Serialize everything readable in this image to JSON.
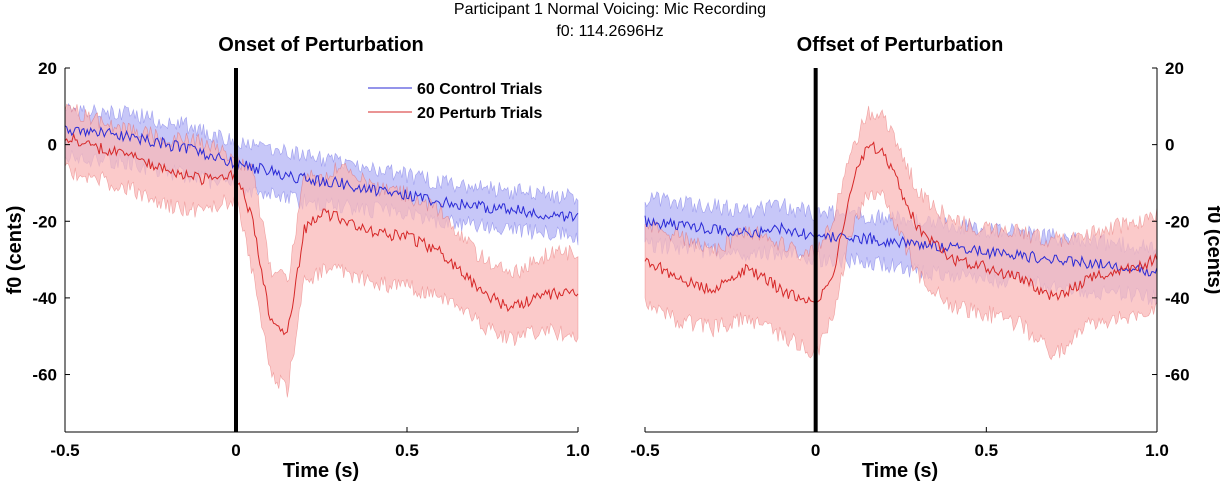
{
  "figure": {
    "suptitle_line1": "Participant 1 Normal Voicing: Mic Recording",
    "suptitle_line2": "f0: 114.2696Hz"
  },
  "colors": {
    "control": "#2a2ad6",
    "control_band": "#b4b4f5",
    "perturb": "#d62828",
    "perturb_band": "#f9b8b8",
    "onset_line": "#000000"
  },
  "legend": {
    "control": "60 Control Trials",
    "perturb": "20 Perturb Trials",
    "placement": "top-right of left panel"
  },
  "chart_data": [
    {
      "type": "line",
      "title": "Onset of Perturbation",
      "xlabel": "Time (s)",
      "ylabel": "f0 (cents)",
      "xlim": [
        -0.5,
        1.0
      ],
      "ylim": [
        -75,
        20
      ],
      "xticks": [
        "-0.5",
        "0",
        "0.5",
        "1.0"
      ],
      "xtick_values": [
        -0.5,
        0,
        0.5,
        1.0
      ],
      "yticks": [
        "20",
        "0",
        "-20",
        "-40",
        "-60"
      ],
      "ytick_values": [
        20,
        0,
        -20,
        -40,
        -60
      ],
      "vline_x": 0,
      "series": [
        {
          "name": "60 Control Trials",
          "key": "control",
          "x": [
            -0.5,
            -0.4,
            -0.3,
            -0.2,
            -0.1,
            0.0,
            0.1,
            0.2,
            0.3,
            0.4,
            0.5,
            0.6,
            0.7,
            0.8,
            0.9,
            1.0
          ],
          "mean": [
            4,
            3,
            2,
            0,
            -2,
            -5,
            -7,
            -9,
            -10,
            -12,
            -13,
            -15,
            -16,
            -17,
            -18,
            -19
          ],
          "lower": [
            -3,
            -4,
            -5,
            -7,
            -9,
            -11,
            -13,
            -15,
            -16,
            -17,
            -18,
            -20,
            -21,
            -22,
            -23,
            -24
          ],
          "upper": [
            10,
            9,
            8,
            6,
            4,
            0,
            -1,
            -3,
            -4,
            -6,
            -8,
            -10,
            -11,
            -12,
            -13,
            -14
          ]
        },
        {
          "name": "20 Perturb Trials",
          "key": "perturb",
          "x": [
            -0.5,
            -0.4,
            -0.3,
            -0.2,
            -0.1,
            0.0,
            0.05,
            0.1,
            0.15,
            0.2,
            0.25,
            0.3,
            0.4,
            0.5,
            0.6,
            0.7,
            0.8,
            0.9,
            1.0
          ],
          "mean": [
            2,
            -1,
            -3,
            -7,
            -9,
            -8,
            -20,
            -46,
            -50,
            -22,
            -18,
            -19,
            -23,
            -24,
            -28,
            -37,
            -43,
            -39,
            -39
          ],
          "lower": [
            -7,
            -9,
            -12,
            -16,
            -17,
            -14,
            -34,
            -59,
            -64,
            -36,
            -33,
            -33,
            -36,
            -37,
            -40,
            -46,
            -51,
            -48,
            -50
          ],
          "upper": [
            10,
            6,
            4,
            1,
            1,
            -4,
            -7,
            -32,
            -36,
            -9,
            -8,
            -6,
            -11,
            -13,
            -17,
            -28,
            -34,
            -29,
            -28
          ]
        }
      ]
    },
    {
      "type": "line",
      "title": "Offset of Perturbation",
      "xlabel": "Time (s)",
      "ylabel": "f0 (cents)",
      "xlim": [
        -0.5,
        1.0
      ],
      "ylim": [
        -75,
        20
      ],
      "xticks": [
        "-0.5",
        "0",
        "0.5",
        "1.0"
      ],
      "xtick_values": [
        -0.5,
        0,
        0.5,
        1.0
      ],
      "yticks": [
        "20",
        "0",
        "-20",
        "-40",
        "-60"
      ],
      "ytick_values": [
        20,
        0,
        -20,
        -40,
        -60
      ],
      "vline_x": 0,
      "series": [
        {
          "name": "60 Control Trials",
          "key": "control",
          "x": [
            -0.5,
            -0.4,
            -0.3,
            -0.2,
            -0.1,
            0.0,
            0.1,
            0.2,
            0.3,
            0.4,
            0.5,
            0.6,
            0.7,
            0.8,
            0.9,
            1.0
          ],
          "mean": [
            -20,
            -21,
            -22,
            -23,
            -22,
            -24,
            -24,
            -25,
            -26,
            -27,
            -28,
            -29,
            -30,
            -31,
            -32,
            -33
          ],
          "lower": [
            -26,
            -27,
            -28,
            -29,
            -28,
            -30,
            -30,
            -31,
            -33,
            -34,
            -35,
            -36,
            -37,
            -38,
            -39,
            -40
          ],
          "upper": [
            -14,
            -15,
            -16,
            -17,
            -16,
            -18,
            -18,
            -19,
            -20,
            -21,
            -22,
            -23,
            -24,
            -25,
            -26,
            -27
          ]
        },
        {
          "name": "20 Perturb Trials",
          "key": "perturb",
          "x": [
            -0.5,
            -0.4,
            -0.3,
            -0.2,
            -0.1,
            -0.05,
            0.0,
            0.05,
            0.1,
            0.15,
            0.2,
            0.25,
            0.3,
            0.4,
            0.5,
            0.6,
            0.7,
            0.8,
            0.9,
            1.0
          ],
          "mean": [
            -30,
            -35,
            -38,
            -32,
            -38,
            -40,
            -42,
            -35,
            -12,
            0,
            -2,
            -12,
            -22,
            -30,
            -32,
            -35,
            -40,
            -35,
            -33,
            -30
          ],
          "lower": [
            -42,
            -46,
            -48,
            -45,
            -50,
            -52,
            -55,
            -45,
            -24,
            -12,
            -14,
            -24,
            -34,
            -42,
            -44,
            -47,
            -55,
            -47,
            -45,
            -42
          ],
          "upper": [
            -20,
            -24,
            -28,
            -22,
            -26,
            -28,
            -28,
            -20,
            -3,
            8,
            7,
            -2,
            -12,
            -20,
            -22,
            -23,
            -25,
            -23,
            -21,
            -18
          ]
        }
      ]
    }
  ]
}
